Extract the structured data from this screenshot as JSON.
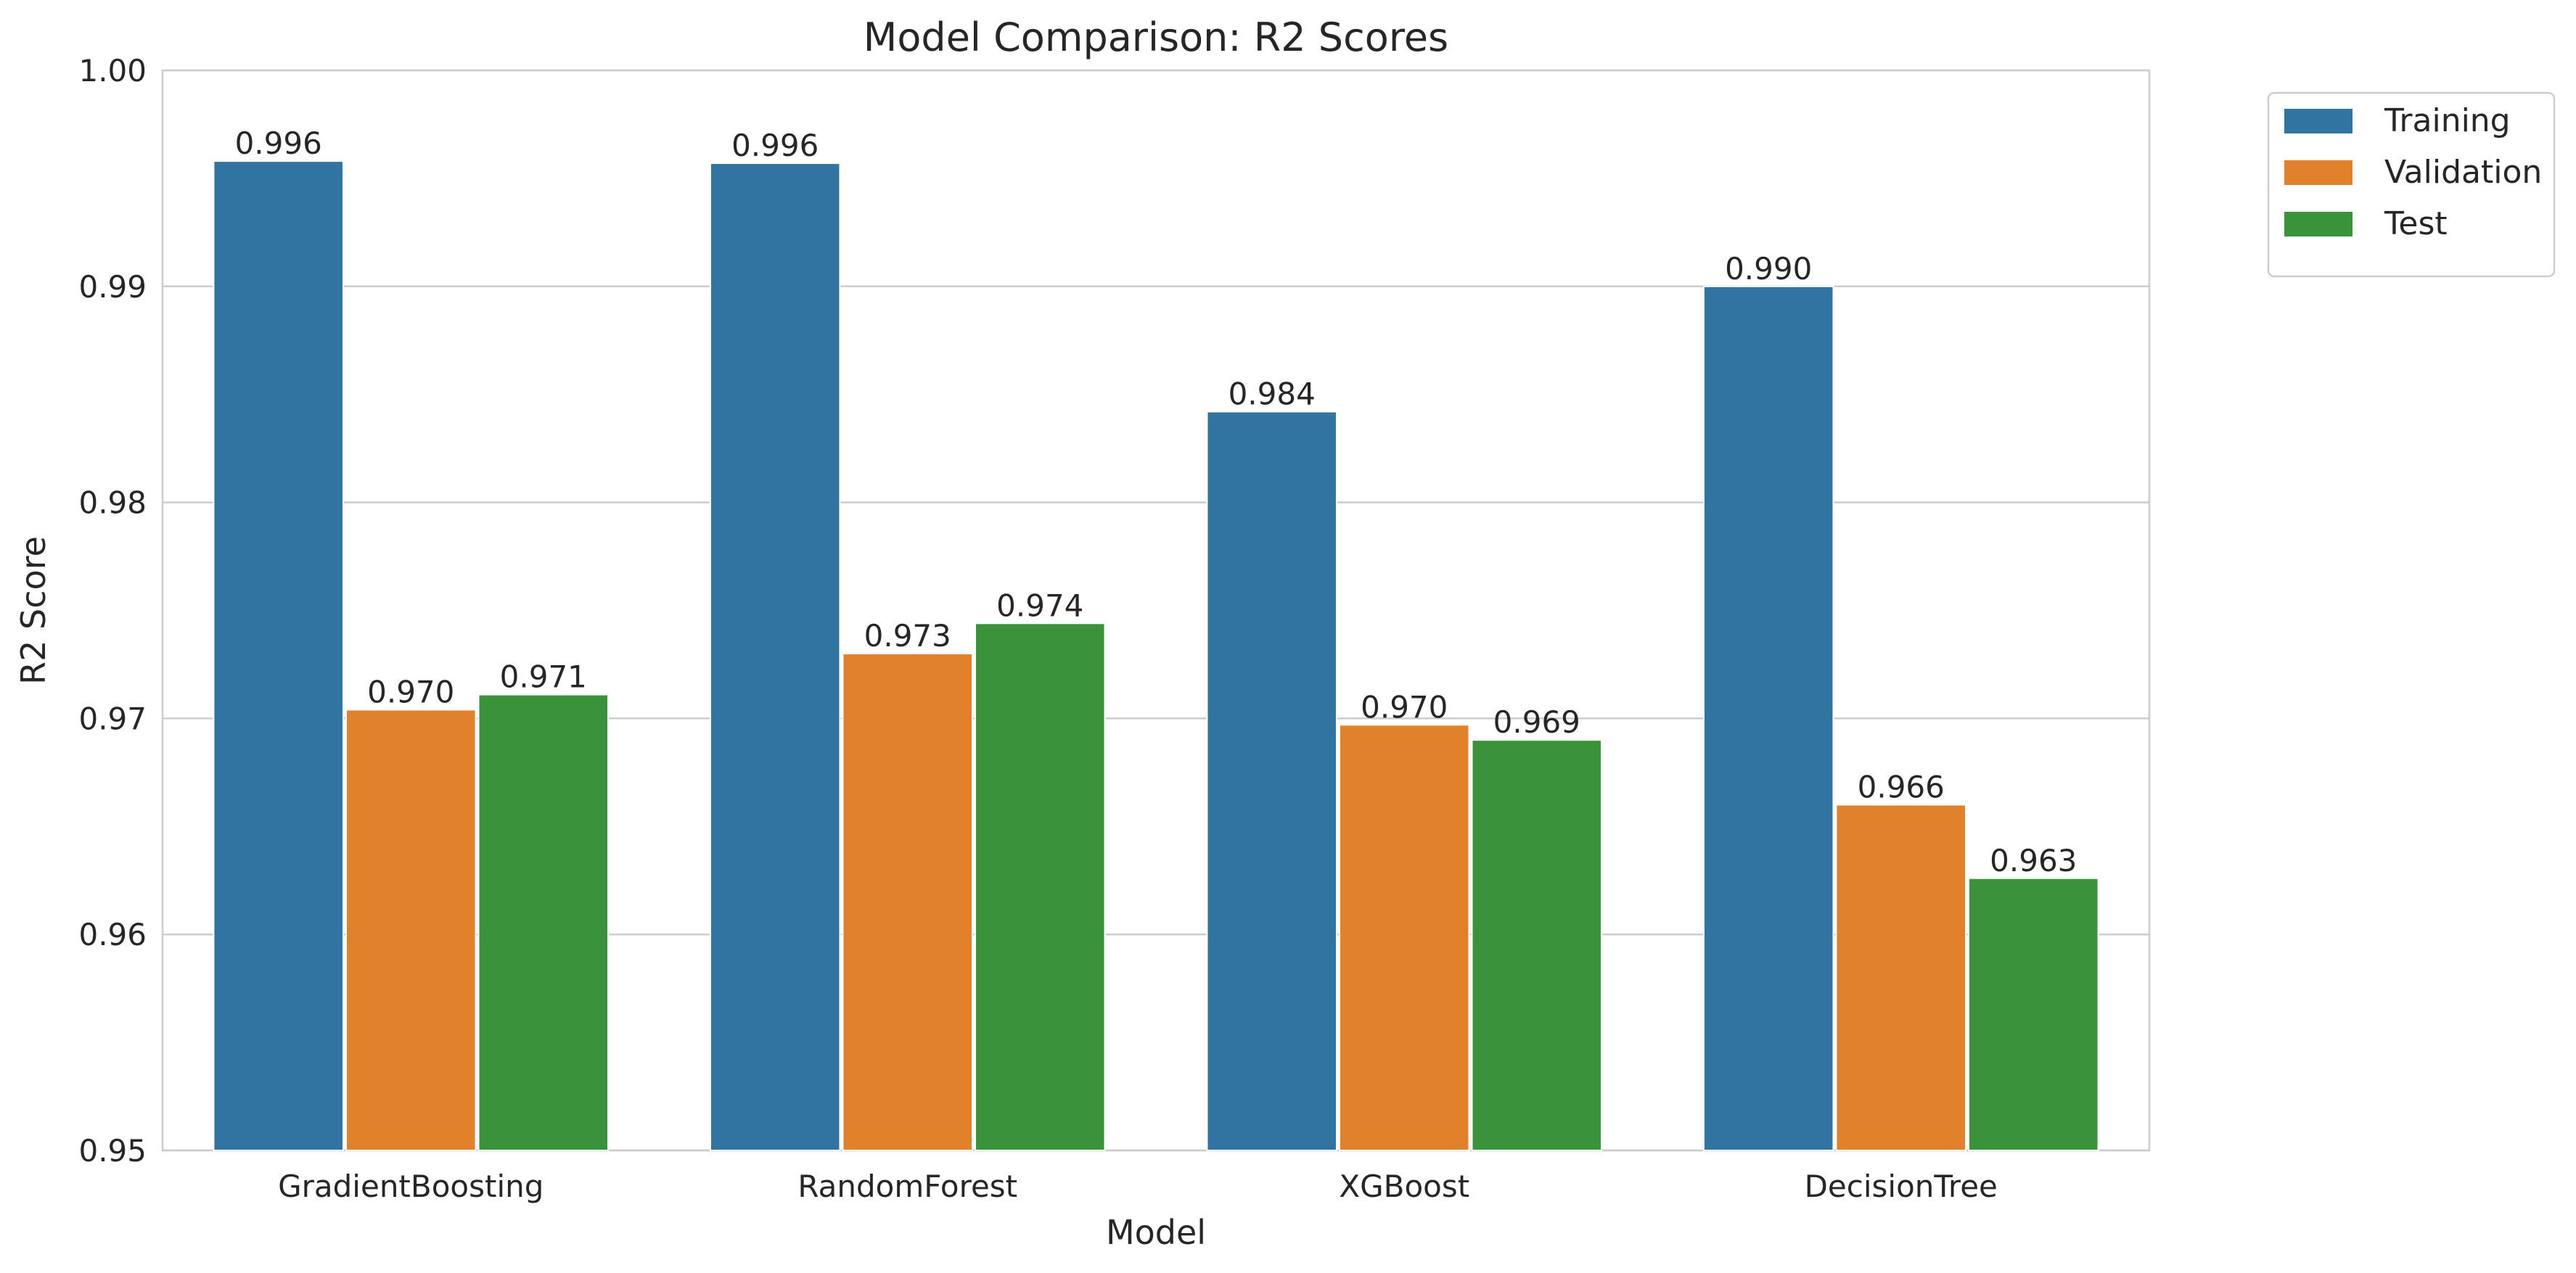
{
  "chart_data": {
    "type": "bar",
    "title": "Model Comparison: R2 Scores",
    "xlabel": "Model",
    "ylabel": "R2 Score",
    "ylim": [
      0.95,
      1.0
    ],
    "yticks": [
      0.95,
      0.96,
      0.97,
      0.98,
      0.99,
      1.0
    ],
    "ytick_labels": [
      "0.95",
      "0.96",
      "0.97",
      "0.98",
      "0.99",
      "1.00"
    ],
    "categories": [
      "GradientBoosting",
      "RandomForest",
      "XGBoost",
      "DecisionTree"
    ],
    "series": [
      {
        "name": "Training",
        "color": "#3274a1",
        "values": [
          0.9958,
          0.9957,
          0.9842,
          0.99
        ],
        "labels": [
          "0.996",
          "0.996",
          "0.984",
          "0.990"
        ]
      },
      {
        "name": "Validation",
        "color": "#e1812c",
        "values": [
          0.9704,
          0.973,
          0.9697,
          0.966
        ],
        "labels": [
          "0.970",
          "0.973",
          "0.970",
          "0.966"
        ]
      },
      {
        "name": "Test",
        "color": "#3a923a",
        "values": [
          0.9711,
          0.9744,
          0.969,
          0.9626
        ],
        "labels": [
          "0.971",
          "0.974",
          "0.969",
          "0.963"
        ]
      }
    ],
    "grid": "y",
    "legend_position": "outside-top-right"
  }
}
